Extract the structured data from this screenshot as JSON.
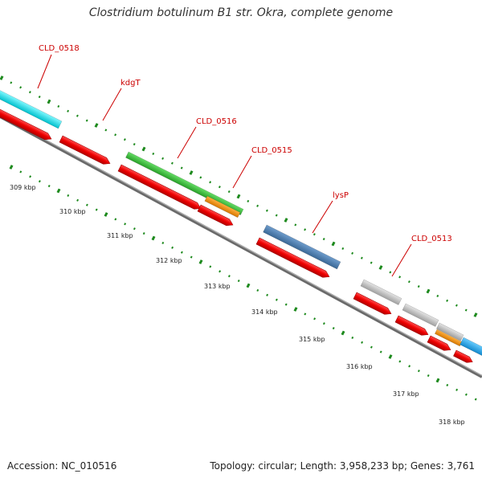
{
  "title": "Clostridium botulinum B1 str. Okra, complete genome",
  "footer": {
    "accession": "Accession: NC_010516",
    "summary": "Topology: circular; Length: 3,958,233 bp; Genes: 3,761"
  },
  "colors": {
    "cds": "#ee0000",
    "gray_gene": "#c2c2c2",
    "cyan_gene": "#00e8f2",
    "green_gene": "#36c236",
    "orange_gene": "#f2900c",
    "blue_gene": "#4a7fb0",
    "light_blue_gene": "#22aaee",
    "tick": "#1e8a1e",
    "backbone": "#808080",
    "label": "#cc0000"
  },
  "gene_labels": [
    {
      "text": "CLD_0518"
    },
    {
      "text": "kdgT"
    },
    {
      "text": "CLD_0516"
    },
    {
      "text": "CLD_0515"
    },
    {
      "text": "lysP"
    },
    {
      "text": "CLD_0513"
    }
  ],
  "kbp_labels": [
    "309 kbp",
    "310 kbp",
    "311 kbp",
    "312 kbp",
    "313 kbp",
    "314 kbp",
    "315 kbp",
    "316 kbp",
    "317 kbp",
    "318 kbp"
  ]
}
